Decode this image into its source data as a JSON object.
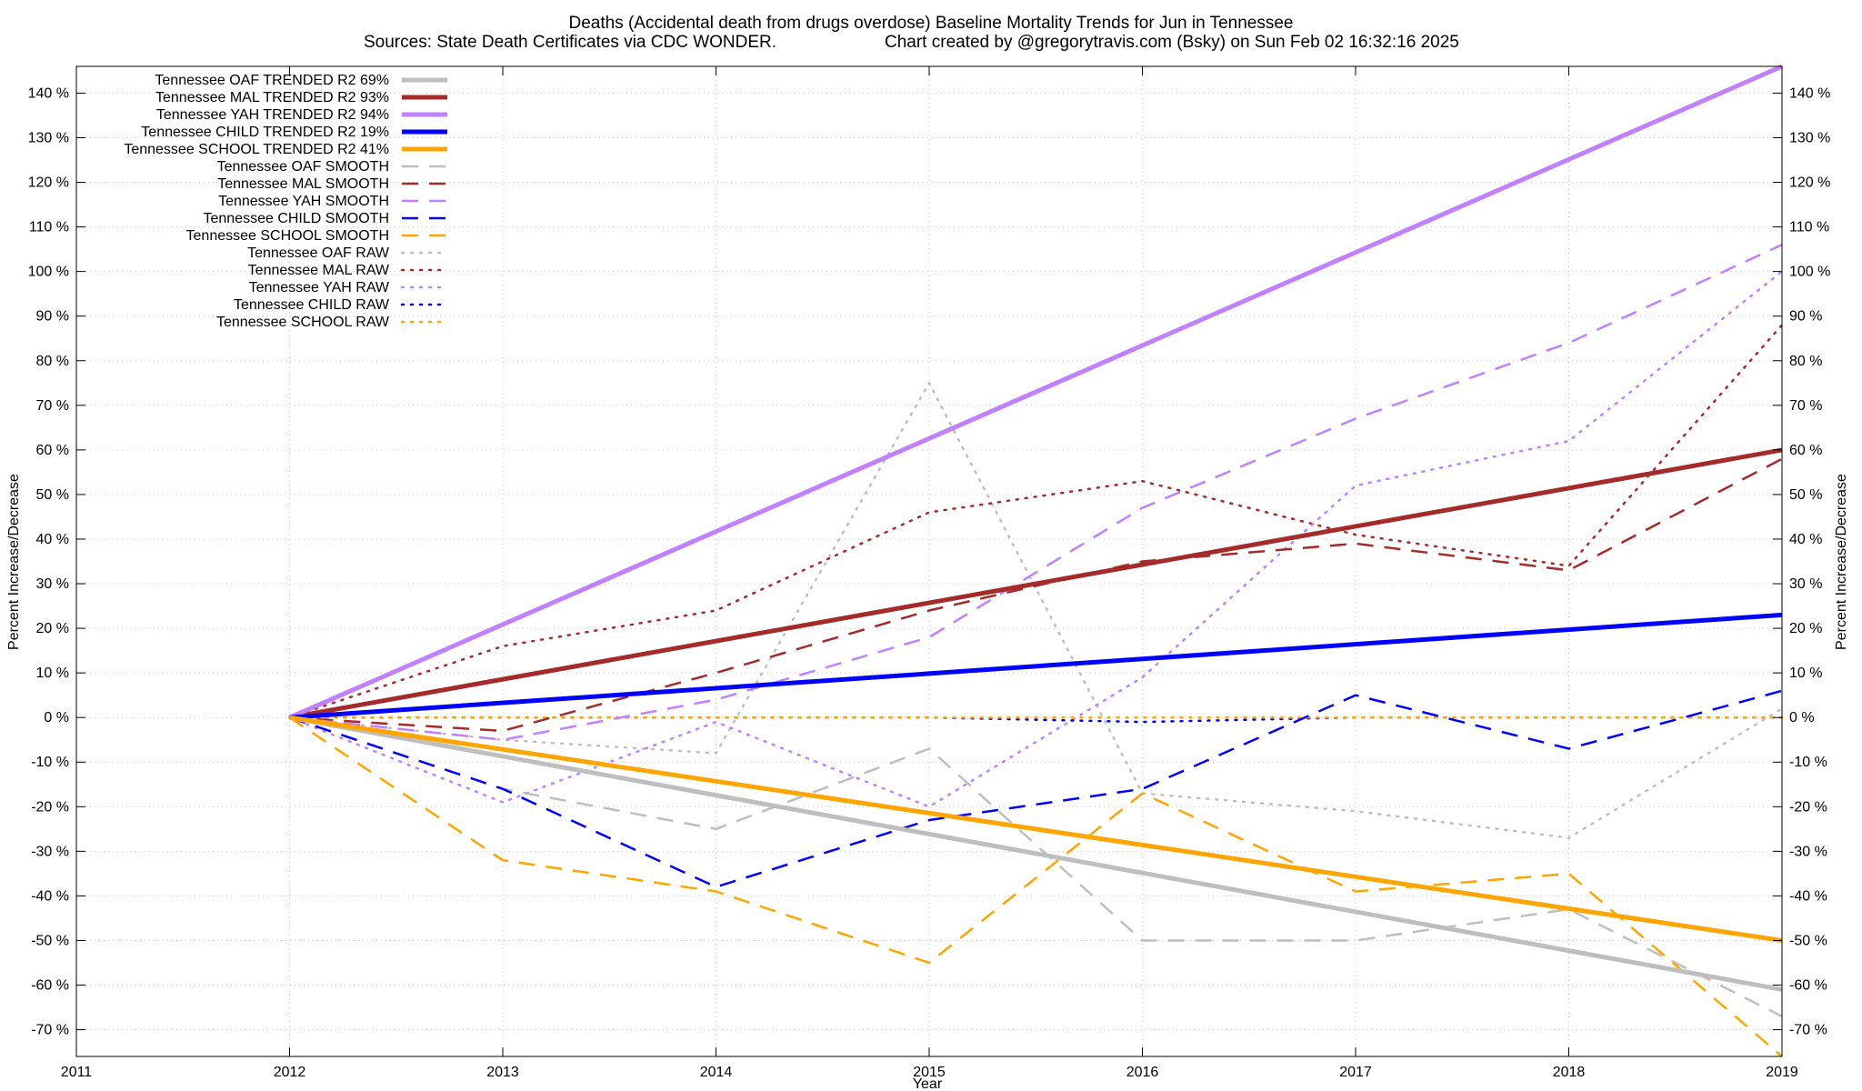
{
  "chart_data": {
    "type": "line",
    "title": "Deaths (Accidental death from drugs overdose)  Baseline Mortality Trends for Jun in Tennessee",
    "subtitle_left": "Sources: State Death Certificates via CDC WONDER.",
    "subtitle_right": "Chart created by @gregorytravis.com (Bsky) on Sun Feb 02 16:32:16 2025",
    "xlabel": "Year",
    "ylabel_left": "Percent Increase/Decrease",
    "ylabel_right": "Percent Increase/Decrease",
    "xlim": [
      2011,
      2019
    ],
    "ylim": [
      -76,
      146
    ],
    "x_ticks": [
      "2011",
      "2012",
      "2013",
      "2014",
      "2015",
      "2016",
      "2017",
      "2018",
      "2019"
    ],
    "y_ticks": [
      -70,
      -60,
      -50,
      -40,
      -30,
      -20,
      -10,
      0,
      10,
      20,
      30,
      40,
      50,
      60,
      70,
      80,
      90,
      100,
      110,
      120,
      130,
      140
    ],
    "y_tick_labels": [
      "-70 %",
      "-60 %",
      "-50 %",
      "-40 %",
      "-30 %",
      "-20 %",
      "-10 %",
      "0 %",
      "10 %",
      "20 %",
      "30 %",
      "40 %",
      "50 %",
      "60 %",
      "70 %",
      "80 %",
      "90 %",
      "100 %",
      "110 %",
      "120 %",
      "130 %",
      "140 %"
    ],
    "grid": true,
    "legend_position": "top-left",
    "series": [
      {
        "name": "Tennessee OAF TRENDED R2  69%",
        "style": "solid",
        "color": "#bebebe",
        "x": [
          2012,
          2019
        ],
        "values": [
          0,
          -61
        ]
      },
      {
        "name": "Tennessee MAL TRENDED R2  93%",
        "style": "solid",
        "color": "#a52a2a",
        "x": [
          2012,
          2019
        ],
        "values": [
          0,
          60
        ]
      },
      {
        "name": "Tennessee YAH TRENDED R2  94%",
        "style": "solid",
        "color": "#c080ff",
        "x": [
          2012,
          2019
        ],
        "values": [
          0,
          146
        ]
      },
      {
        "name": "Tennessee CHILD TRENDED R2  19%",
        "style": "solid",
        "color": "#0000ff",
        "x": [
          2012,
          2019
        ],
        "values": [
          0,
          23
        ]
      },
      {
        "name": "Tennessee SCHOOL TRENDED R2  41%",
        "style": "solid",
        "color": "#ffa500",
        "x": [
          2012,
          2019
        ],
        "values": [
          0,
          -50
        ]
      },
      {
        "name": "Tennessee OAF SMOOTH",
        "style": "dashed",
        "color": "#bebebe",
        "x": [
          2012,
          2013,
          2014,
          2015,
          2016,
          2017,
          2018,
          2019
        ],
        "values": [
          0,
          -16,
          -25,
          -7,
          -50,
          -50,
          -43,
          -67
        ]
      },
      {
        "name": "Tennessee MAL SMOOTH",
        "style": "dashed",
        "color": "#a52a2a",
        "x": [
          2012,
          2013,
          2014,
          2015,
          2016,
          2017,
          2018,
          2019
        ],
        "values": [
          0,
          -3,
          10,
          24,
          35,
          39,
          33,
          58
        ]
      },
      {
        "name": "Tennessee YAH SMOOTH",
        "style": "dashed",
        "color": "#c080ff",
        "x": [
          2012,
          2013,
          2014,
          2015,
          2016,
          2017,
          2018,
          2019
        ],
        "values": [
          0,
          -5,
          4,
          18,
          47,
          67,
          84,
          106
        ]
      },
      {
        "name": "Tennessee CHILD SMOOTH",
        "style": "dashed",
        "color": "#0000ff",
        "x": [
          2012,
          2013,
          2014,
          2015,
          2016,
          2017,
          2018,
          2019
        ],
        "values": [
          0,
          -16,
          -38,
          -23,
          -16,
          5,
          -7,
          6
        ]
      },
      {
        "name": "Tennessee SCHOOL SMOOTH",
        "style": "dashed",
        "color": "#ffa500",
        "x": [
          2012,
          2013,
          2014,
          2015,
          2016,
          2017,
          2018,
          2019
        ],
        "values": [
          0,
          -32,
          -39,
          -55,
          -17,
          -39,
          -35,
          -76
        ]
      },
      {
        "name": "Tennessee OAF RAW",
        "style": "dotted",
        "color": "#bebebe",
        "x": [
          2012,
          2013,
          2014,
          2015,
          2016,
          2017,
          2018,
          2019
        ],
        "values": [
          0,
          -5,
          -8,
          75,
          -17,
          -21,
          -27,
          2
        ]
      },
      {
        "name": "Tennessee MAL RAW",
        "style": "dotted",
        "color": "#a52a2a",
        "x": [
          2012,
          2013,
          2014,
          2015,
          2016,
          2017,
          2018,
          2019
        ],
        "values": [
          0,
          16,
          24,
          46,
          53,
          41,
          34,
          88
        ]
      },
      {
        "name": "Tennessee YAH RAW",
        "style": "dotted",
        "color": "#c080ff",
        "x": [
          2012,
          2013,
          2014,
          2015,
          2016,
          2017,
          2018,
          2019
        ],
        "values": [
          0,
          -19,
          -1,
          -20,
          9,
          52,
          62,
          100
        ]
      },
      {
        "name": "Tennessee CHILD RAW",
        "style": "dotted",
        "color": "#0000ff",
        "x": [
          2012,
          2013,
          2014,
          2015,
          2016,
          2017,
          2018,
          2019
        ],
        "values": [
          0,
          0,
          0,
          0,
          -1,
          0,
          0,
          0
        ]
      },
      {
        "name": "Tennessee SCHOOL RAW",
        "style": "dotted",
        "color": "#ffa500",
        "x": [
          2012,
          2013,
          2014,
          2015,
          2016,
          2017,
          2018,
          2019
        ],
        "values": [
          0,
          0,
          0,
          0,
          0,
          0,
          0,
          0
        ]
      }
    ]
  }
}
